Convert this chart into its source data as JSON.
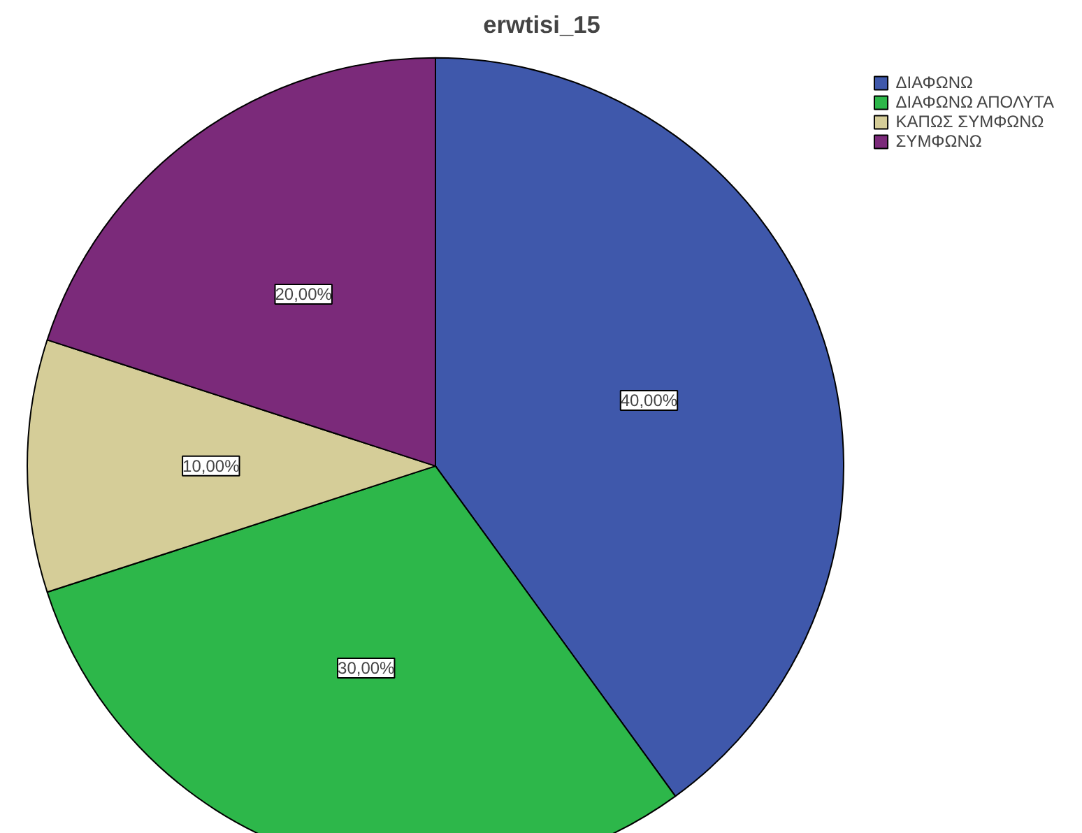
{
  "chart_data": {
    "type": "pie",
    "title": "erwtisi_15",
    "categories": [
      "ΔΙΑΦΩΝΩ",
      "ΔΙΑΦΩΝΩ ΑΠΟΛΥΤΑ",
      "ΚΑΠΩΣ ΣΥΜΦΩΝΩ",
      "ΣΥΜΦΩΝΩ"
    ],
    "values": [
      40,
      30,
      10,
      20
    ],
    "colors": [
      "#3f58ab",
      "#2db74a",
      "#d5cd98",
      "#7b2a7a"
    ],
    "value_labels": [
      "40,00%",
      "30,00%",
      "10,00%",
      "20,00%"
    ],
    "legend": "top right"
  }
}
